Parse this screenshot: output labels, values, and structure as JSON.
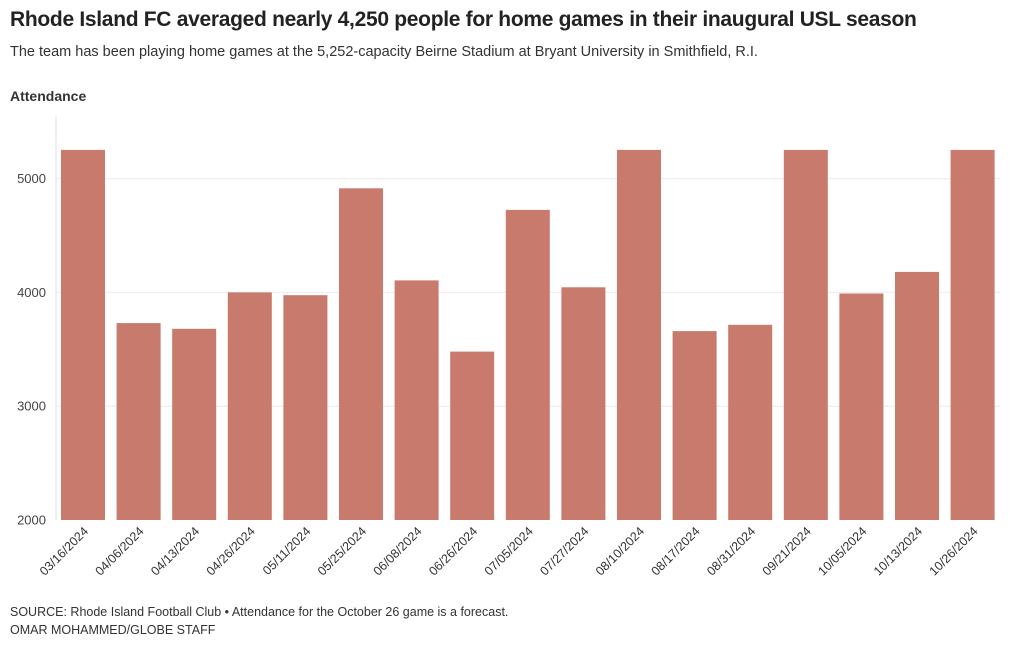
{
  "header": {
    "title": "Rhode Island FC averaged nearly 4,250 people for home games in their inaugural USL season",
    "subtitle": "The team has been playing home games at the 5,252-capacity Beirne Stadium at Bryant University in Smithfield, R.I."
  },
  "footer": {
    "source": "SOURCE: Rhode Island Football Club • Attendance for the October 26 game is a forecast.",
    "credit": "OMAR MOHAMMED/GLOBE STAFF"
  },
  "chart_data": {
    "type": "bar",
    "ylabel": "Attendance",
    "xlabel": "",
    "categories": [
      "03/16/2024",
      "04/06/2024",
      "04/13/2024",
      "04/26/2024",
      "05/11/2024",
      "05/25/2024",
      "06/08/2024",
      "06/26/2024",
      "07/05/2024",
      "07/27/2024",
      "08/10/2024",
      "08/17/2024",
      "08/31/2024",
      "09/21/2024",
      "10/05/2024",
      "10/13/2024",
      "10/26/2024"
    ],
    "values": [
      5252,
      3730,
      3680,
      4000,
      3975,
      4915,
      4105,
      3480,
      4725,
      4045,
      5252,
      3660,
      3715,
      5252,
      3990,
      4180,
      5252
    ],
    "ylim": [
      2000,
      5550
    ],
    "yticks": [
      2000,
      3000,
      4000,
      5000
    ],
    "bar_color": "#c87a6c",
    "grid": true
  }
}
